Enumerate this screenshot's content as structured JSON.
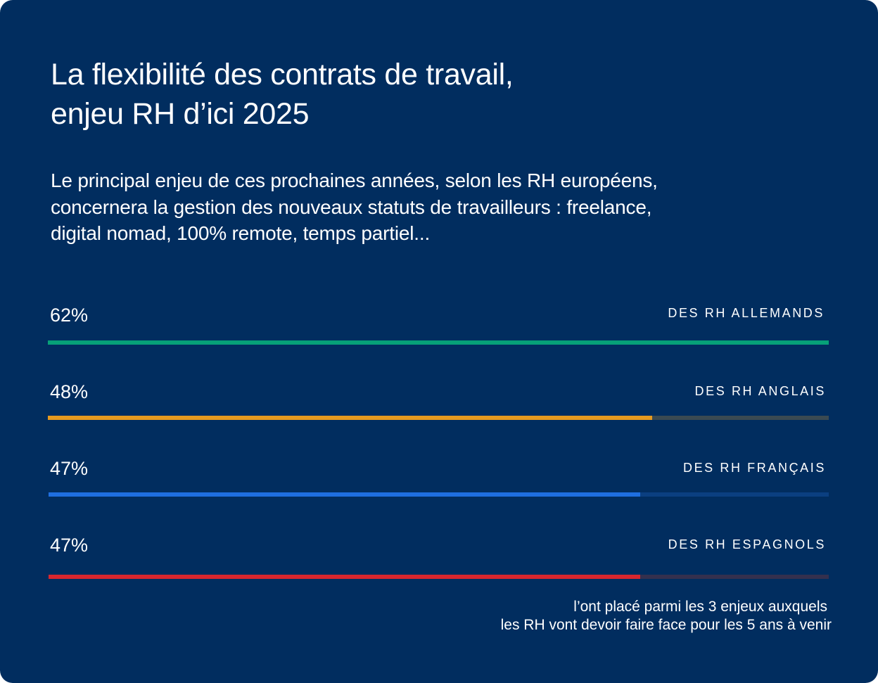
{
  "title": {
    "line1": "La flexibilité des contrats de travail,",
    "line2": "enjeu RH d’ici 2025"
  },
  "subtitle": {
    "line1": "Le principal enjeu de ces prochaines années, selon les RH européens,",
    "line2": "concernera la gestion des nouveaux statuts de travailleurs : freelance,",
    "line3": "digital nomad, 100% remote, temps partiel..."
  },
  "footnote": {
    "line1": "l’ont placé parmi les 3 enjeux auxquels",
    "line2": "les RH vont devoir faire face pour les 5 ans à venir"
  },
  "chart_data": {
    "type": "bar",
    "orientation": "horizontal",
    "title": "La flexibilité des contrats de travail, enjeu RH d’ici 2025",
    "categories": [
      "DES RH ALLEMANDS",
      "DES RH ANGLAIS",
      "DES RH FRANÇAIS",
      "DES RH ESPAGNOLS"
    ],
    "values": [
      62,
      48,
      47,
      47
    ],
    "value_labels": [
      "62%",
      "48%",
      "47%",
      "47%"
    ],
    "unit": "%",
    "xlim": [
      0,
      62
    ],
    "bars": [
      {
        "label": "DES RH ALLEMANDS",
        "value": 62,
        "value_label": "62%",
        "color": "#07a078",
        "track_color": "#07a078"
      },
      {
        "label": "DES RH ANGLAIS",
        "value": 48,
        "value_label": "48%",
        "color": "#e69a1f",
        "track_color": "#3a4a52"
      },
      {
        "label": "DES RH FRANÇAIS",
        "value": 47,
        "value_label": "47%",
        "color": "#1f6fe0",
        "track_color": "#0b3f80"
      },
      {
        "label": "DES RH ESPAGNOLS",
        "value": 47,
        "value_label": "47%",
        "color": "#d8262e",
        "track_color": "#34304e"
      }
    ]
  }
}
